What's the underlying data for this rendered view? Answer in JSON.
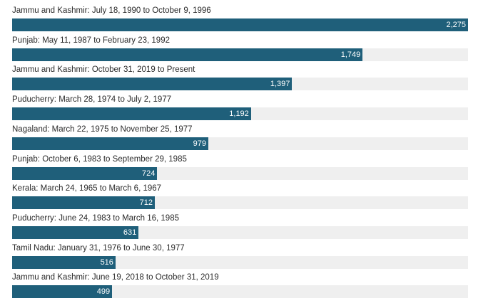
{
  "chart_data": {
    "type": "bar",
    "orientation": "horizontal",
    "title": "",
    "xlabel": "",
    "ylabel": "",
    "categories": [
      "Jammu and Kashmir: July 18, 1990 to October 9, 1996",
      "Punjab: May 11, 1987 to February 23, 1992",
      "Jammu and Kashmir: October 31, 2019 to Present",
      "Puducherry: March 28, 1974 to July 2, 1977",
      "Nagaland: March 22, 1975 to November 25, 1977",
      "Punjab: October 6, 1983 to September 29, 1985",
      "Kerala: March 24, 1965 to March 6, 1967",
      "Puducherry: June 24, 1983 to March 16, 1985",
      "Tamil Nadu: January 31, 1976 to June 30, 1977",
      "Jammu and Kashmir: June 19, 2018 to October 31, 2019"
    ],
    "values": [
      2275,
      1749,
      1397,
      1192,
      979,
      724,
      712,
      631,
      516,
      499
    ],
    "value_labels": [
      "2,275",
      "1,749",
      "1,397",
      "1,192",
      "979",
      "724",
      "712",
      "631",
      "516",
      "499"
    ],
    "xlim": [
      0,
      2275
    ],
    "grid": false,
    "legend": "none",
    "colors": {
      "bar": "#1f5f7a",
      "track": "#efefef",
      "label": "#2b2b2b",
      "value_text": "#ffffff"
    }
  }
}
